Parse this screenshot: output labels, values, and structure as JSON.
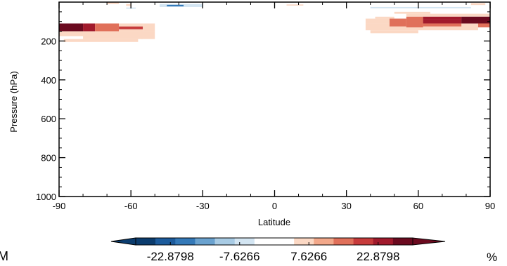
{
  "corner_label": "M",
  "chart_data": {
    "type": "heatmap",
    "xlabel": "Latitude",
    "ylabel": "Pressure (hPa)",
    "xlim": [
      -90,
      90
    ],
    "ylim": [
      1000,
      0
    ],
    "x_ticks": [
      -90,
      -60,
      -30,
      0,
      30,
      60,
      90
    ],
    "y_ticks": [
      200,
      400,
      600,
      800,
      1000
    ],
    "units": "%",
    "colorbar": {
      "min": -30.5064,
      "max": 30.5064,
      "tick_labels": [
        "-22.8798",
        "-7.6266",
        "7.6266",
        "22.8798"
      ],
      "tick_values": [
        -22.8798,
        -7.6266,
        7.6266,
        22.8798
      ],
      "colors": [
        "#0b3c6e",
        "#1c5b9c",
        "#3479b8",
        "#6aa2cf",
        "#a8cbe4",
        "#d3e5f2",
        "#ffffff",
        "#ffffff",
        "#fbd8c4",
        "#f2a88a",
        "#e0705a",
        "#c73b3b",
        "#a11a2c",
        "#6b0a1f"
      ],
      "extend": "both"
    },
    "cells": [
      {
        "lat0": -90,
        "lat1": -80,
        "p0": 110,
        "p1": 150,
        "value": 28
      },
      {
        "lat0": -80,
        "lat1": -75,
        "p0": 110,
        "p1": 150,
        "value": 22
      },
      {
        "lat0": -75,
        "lat1": -65,
        "p0": 110,
        "p1": 150,
        "value": 15
      },
      {
        "lat0": -65,
        "lat1": -55,
        "p0": 125,
        "p1": 140,
        "value": 20
      },
      {
        "lat0": -65,
        "lat1": -55,
        "p0": 110,
        "p1": 125,
        "value": 7.8
      },
      {
        "lat0": -65,
        "lat1": -55,
        "p0": 140,
        "p1": 150,
        "value": 7.8
      },
      {
        "lat0": -55,
        "lat1": -50,
        "p0": 110,
        "p1": 150,
        "value": 7.8
      },
      {
        "lat0": -90,
        "lat1": -55,
        "p0": 150,
        "p1": 175,
        "value": 7.8
      },
      {
        "lat0": -80,
        "lat1": -55,
        "p0": 175,
        "p1": 190,
        "value": 5
      },
      {
        "lat0": -88,
        "lat1": -57,
        "p0": 190,
        "p1": 205,
        "value": 5
      },
      {
        "lat0": -56,
        "lat1": -50,
        "p0": 150,
        "p1": 190,
        "value": 5
      },
      {
        "lat0": -70,
        "lat1": -65,
        "p0": 0,
        "p1": 10,
        "value": 5
      },
      {
        "lat0": -62,
        "lat1": -60,
        "p0": 10,
        "p1": 20,
        "value": 6
      },
      {
        "lat0": -48,
        "lat1": -30,
        "p0": 10,
        "p1": 25,
        "value": -8
      },
      {
        "lat0": -45,
        "lat1": -38,
        "p0": 14,
        "p1": 22,
        "value": -20
      },
      {
        "lat0": -30,
        "lat1": 5,
        "p0": 12,
        "p1": 20,
        "value": -4
      },
      {
        "lat0": 5,
        "lat1": 12,
        "p0": 12,
        "p1": 18,
        "value": 5
      },
      {
        "lat0": -62,
        "lat1": -58,
        "p0": 28,
        "p1": 34,
        "value": -5
      },
      {
        "lat0": 40,
        "lat1": 82,
        "p0": 25,
        "p1": 32,
        "value": -5
      },
      {
        "lat0": 82,
        "lat1": 88,
        "p0": 5,
        "p1": 15,
        "value": 6
      },
      {
        "lat0": 50,
        "lat1": 65,
        "p0": 50,
        "p1": 60,
        "value": 7.8
      },
      {
        "lat0": 42,
        "lat1": 50,
        "p0": 75,
        "p1": 85,
        "value": 7.8
      },
      {
        "lat0": 38,
        "lat1": 90,
        "p0": 85,
        "p1": 110,
        "value": 7.8
      },
      {
        "lat0": 38,
        "lat1": 85,
        "p0": 110,
        "p1": 145,
        "value": 7.8
      },
      {
        "lat0": 40,
        "lat1": 60,
        "p0": 145,
        "p1": 160,
        "value": 5
      },
      {
        "lat0": 55,
        "lat1": 90,
        "p0": 60,
        "p1": 75,
        "value": 7.8
      },
      {
        "lat0": 48,
        "lat1": 55,
        "p0": 85,
        "p1": 125,
        "value": 15
      },
      {
        "lat0": 55,
        "lat1": 62,
        "p0": 75,
        "p1": 130,
        "value": 15
      },
      {
        "lat0": 62,
        "lat1": 78,
        "p0": 75,
        "p1": 90,
        "value": 22
      },
      {
        "lat0": 62,
        "lat1": 78,
        "p0": 90,
        "p1": 110,
        "value": 26
      },
      {
        "lat0": 62,
        "lat1": 78,
        "p0": 110,
        "p1": 125,
        "value": 15
      },
      {
        "lat0": 78,
        "lat1": 90,
        "p0": 75,
        "p1": 110,
        "value": 30
      },
      {
        "lat0": 85,
        "lat1": 90,
        "p0": 110,
        "p1": 130,
        "value": 15
      }
    ]
  }
}
